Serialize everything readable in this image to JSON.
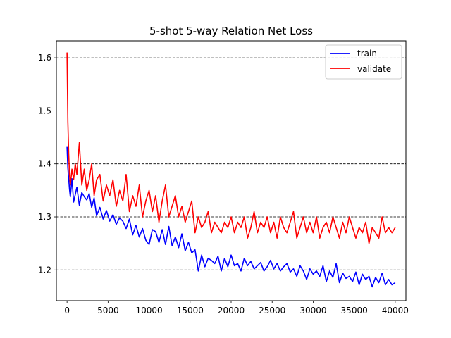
{
  "chart_data": {
    "type": "line",
    "title": "5-shot 5-way Relation Net Loss",
    "xlabel": "",
    "ylabel": "",
    "xlim": [
      -1300,
      41300
    ],
    "ylim": [
      1.142,
      1.632
    ],
    "x_ticks": [
      0,
      5000,
      10000,
      15000,
      20000,
      25000,
      30000,
      35000,
      40000
    ],
    "x_tick_labels": [
      "0",
      "5000",
      "10000",
      "15000",
      "20000",
      "25000",
      "30000",
      "35000",
      "40000"
    ],
    "y_ticks": [
      1.2,
      1.3,
      1.4,
      1.5,
      1.6
    ],
    "y_tick_labels": [
      "1.2",
      "1.3",
      "1.4",
      "1.5",
      "1.6"
    ],
    "grid": "horizontal dashed",
    "legend": "top-right",
    "series": [
      {
        "name": "train",
        "color": "#0000ff",
        "x": [
          0,
          100,
          200,
          300,
          400,
          600,
          800,
          1000,
          1200,
          1500,
          1800,
          2100,
          2400,
          2700,
          3000,
          3300,
          3600,
          4000,
          4400,
          4800,
          5200,
          5600,
          6000,
          6400,
          6800,
          7200,
          7600,
          8000,
          8400,
          8800,
          9200,
          9600,
          10000,
          10400,
          10800,
          11200,
          11600,
          12000,
          12400,
          12800,
          13200,
          13600,
          14000,
          14400,
          14800,
          15200,
          15600,
          16000,
          16400,
          16800,
          17200,
          17600,
          18000,
          18400,
          18800,
          19200,
          19600,
          20000,
          20400,
          20800,
          21200,
          21600,
          22000,
          22400,
          22800,
          23200,
          23600,
          24000,
          24400,
          24800,
          25200,
          25600,
          26000,
          26400,
          26800,
          27200,
          27600,
          28000,
          28400,
          28800,
          29200,
          29600,
          30000,
          30400,
          30800,
          31200,
          31600,
          32000,
          32400,
          32800,
          33200,
          33600,
          34000,
          34400,
          34800,
          35200,
          35600,
          36000,
          36400,
          36800,
          37200,
          37600,
          38000,
          38400,
          38800,
          39200,
          39600,
          40000
        ],
        "values": [
          1.432,
          1.392,
          1.372,
          1.352,
          1.338,
          1.372,
          1.328,
          1.342,
          1.356,
          1.322,
          1.346,
          1.338,
          1.332,
          1.344,
          1.318,
          1.336,
          1.302,
          1.318,
          1.296,
          1.312,
          1.292,
          1.304,
          1.286,
          1.298,
          1.292,
          1.278,
          1.296,
          1.266,
          1.284,
          1.262,
          1.278,
          1.256,
          1.248,
          1.276,
          1.272,
          1.252,
          1.276,
          1.248,
          1.282,
          1.246,
          1.262,
          1.242,
          1.268,
          1.236,
          1.252,
          1.232,
          1.238,
          1.198,
          1.228,
          1.206,
          1.222,
          1.218,
          1.212,
          1.226,
          1.198,
          1.222,
          1.206,
          1.228,
          1.208,
          1.212,
          1.198,
          1.222,
          1.208,
          1.216,
          1.202,
          1.208,
          1.214,
          1.198,
          1.206,
          1.218,
          1.202,
          1.212,
          1.198,
          1.206,
          1.212,
          1.196,
          1.202,
          1.188,
          1.208,
          1.198,
          1.182,
          1.202,
          1.192,
          1.198,
          1.188,
          1.208,
          1.178,
          1.198,
          1.186,
          1.212,
          1.176,
          1.194,
          1.184,
          1.188,
          1.178,
          1.196,
          1.172,
          1.192,
          1.182,
          1.188,
          1.168,
          1.186,
          1.176,
          1.194,
          1.172,
          1.182,
          1.172,
          1.176
        ]
      },
      {
        "name": "validate",
        "color": "#ff0000",
        "x": [
          0,
          100,
          200,
          300,
          400,
          600,
          800,
          1000,
          1200,
          1500,
          1800,
          2100,
          2400,
          2700,
          3000,
          3300,
          3600,
          4000,
          4400,
          4800,
          5200,
          5600,
          6000,
          6400,
          6800,
          7200,
          7600,
          8000,
          8400,
          8800,
          9200,
          9600,
          10000,
          10400,
          10800,
          11200,
          11600,
          12000,
          12400,
          12800,
          13200,
          13600,
          14000,
          14400,
          14800,
          15200,
          15600,
          16000,
          16400,
          16800,
          17200,
          17600,
          18000,
          18400,
          18800,
          19200,
          19600,
          20000,
          20400,
          20800,
          21200,
          21600,
          22000,
          22400,
          22800,
          23200,
          23600,
          24000,
          24400,
          24800,
          25200,
          25600,
          26000,
          26400,
          26800,
          27200,
          27600,
          28000,
          28400,
          28800,
          29200,
          29600,
          30000,
          30400,
          30800,
          31200,
          31600,
          32000,
          32400,
          32800,
          33200,
          33600,
          34000,
          34400,
          34800,
          35200,
          35600,
          36000,
          36400,
          36800,
          37200,
          37600,
          38000,
          38400,
          38800,
          39200,
          39600,
          40000
        ],
        "values": [
          1.61,
          1.48,
          1.42,
          1.38,
          1.36,
          1.39,
          1.37,
          1.4,
          1.38,
          1.44,
          1.36,
          1.39,
          1.35,
          1.37,
          1.4,
          1.34,
          1.37,
          1.38,
          1.33,
          1.36,
          1.34,
          1.37,
          1.32,
          1.35,
          1.33,
          1.38,
          1.31,
          1.34,
          1.32,
          1.36,
          1.3,
          1.33,
          1.35,
          1.31,
          1.34,
          1.29,
          1.33,
          1.36,
          1.3,
          1.32,
          1.34,
          1.3,
          1.32,
          1.29,
          1.31,
          1.33,
          1.27,
          1.3,
          1.28,
          1.29,
          1.31,
          1.27,
          1.29,
          1.28,
          1.27,
          1.29,
          1.28,
          1.3,
          1.27,
          1.29,
          1.28,
          1.3,
          1.26,
          1.28,
          1.31,
          1.27,
          1.29,
          1.28,
          1.3,
          1.27,
          1.29,
          1.26,
          1.3,
          1.28,
          1.27,
          1.29,
          1.31,
          1.26,
          1.28,
          1.3,
          1.27,
          1.29,
          1.27,
          1.3,
          1.26,
          1.28,
          1.29,
          1.27,
          1.3,
          1.28,
          1.26,
          1.29,
          1.27,
          1.3,
          1.28,
          1.26,
          1.28,
          1.27,
          1.29,
          1.25,
          1.28,
          1.27,
          1.26,
          1.3,
          1.27,
          1.28,
          1.27,
          1.28
        ]
      }
    ]
  }
}
